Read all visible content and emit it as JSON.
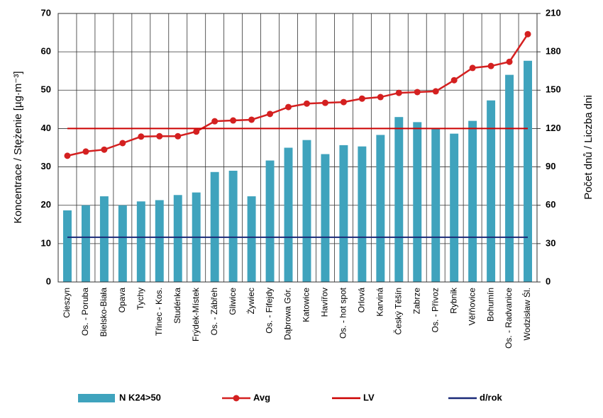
{
  "chart_data": {
    "type": "bar",
    "y_label": "Koncentrace  / Stężenie [µg·m⁻³]",
    "y2_label": "Počet dnů / Liczba dni",
    "categories": [
      "Cieszyn",
      "Os. - Poruba",
      "Bielsko-Biała",
      "Opava",
      "Tychy",
      "Třinec - Kos.",
      "Studénka",
      "Frýdek-Místek",
      "Os. - Zábřeh",
      "Gliwice",
      "Żywiec",
      "Os. - Fifejdy",
      "Dąbrowa Gór.",
      "Katowice",
      "Havířov",
      "Os. - hot spot",
      "Orlová",
      "Karviná",
      "Český Těšín",
      "Zabrze",
      "Os. - Přívoz",
      "Rybnik",
      "Věřňovice",
      "Bohumín",
      "Os. - Radvanice",
      "Wodzisław Śl."
    ],
    "series": [
      {
        "name": "N K24>50",
        "type": "bar",
        "axis": "y2",
        "color": "#3fa3bd",
        "values": [
          56,
          60,
          67,
          60,
          63,
          64,
          68,
          70,
          86,
          87,
          67,
          95,
          105,
          111,
          100,
          107,
          106,
          115,
          129,
          125,
          120,
          116,
          126,
          142,
          162,
          173
        ]
      },
      {
        "name": "Avg",
        "type": "line",
        "marker": true,
        "color": "#d42020",
        "values": [
          32.9,
          34,
          34.5,
          36.2,
          37.9,
          38,
          38,
          39.2,
          41.9,
          42.1,
          42.3,
          43.8,
          45.6,
          46.5,
          46.7,
          46.9,
          47.8,
          48.2,
          49.3,
          49.5,
          49.7,
          52.6,
          55.8,
          56.3,
          57.4,
          64.6
        ]
      },
      {
        "name": "LV",
        "type": "line",
        "marker": false,
        "color": "#cc0000",
        "values": [
          40,
          40,
          40,
          40,
          40,
          40,
          40,
          40,
          40,
          40,
          40,
          40,
          40,
          40,
          40,
          40,
          40,
          40,
          40,
          40,
          40,
          40,
          40,
          40,
          40,
          40
        ]
      },
      {
        "name": "d/rok",
        "type": "line",
        "marker": false,
        "axis": "y2",
        "color": "#1a2a78",
        "values": [
          35,
          35,
          35,
          35,
          35,
          35,
          35,
          35,
          35,
          35,
          35,
          35,
          35,
          35,
          35,
          35,
          35,
          35,
          35,
          35,
          35,
          35,
          35,
          35,
          35,
          35
        ]
      }
    ],
    "ylim": [
      0,
      70
    ],
    "yticks": [
      0,
      10,
      20,
      30,
      40,
      50,
      60,
      70
    ],
    "y2lim": [
      0,
      210
    ],
    "y2ticks": [
      0,
      30,
      60,
      90,
      120,
      150,
      180,
      210
    ],
    "grid": true,
    "legend": "bottom"
  }
}
